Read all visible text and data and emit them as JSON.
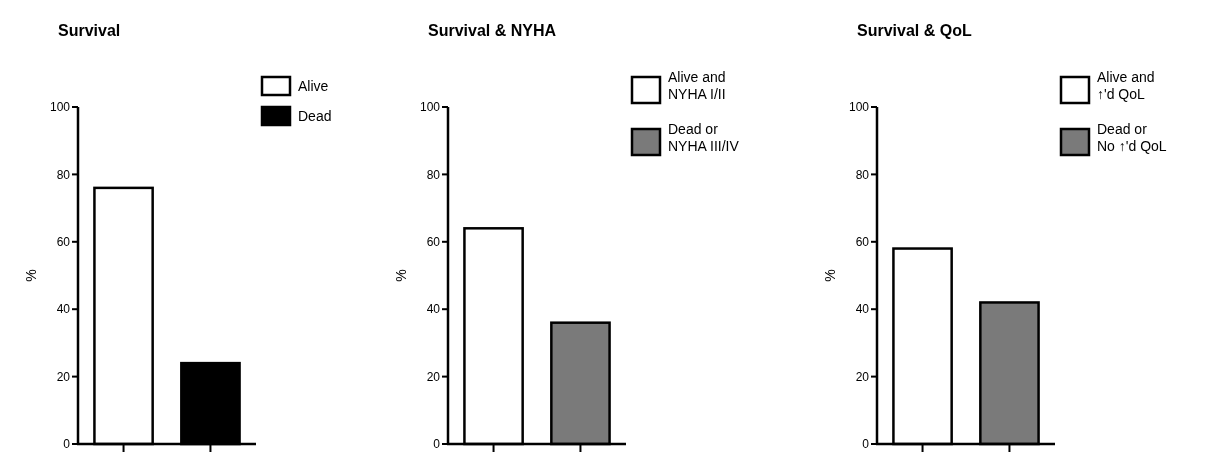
{
  "chart_data": [
    {
      "type": "bar",
      "title": "Survival",
      "ylabel": "%",
      "categories": [
        null,
        null
      ],
      "ylim": [
        0,
        100
      ],
      "yticks": [
        0,
        20,
        40,
        60,
        80,
        100
      ],
      "legend": "top right",
      "series": [
        {
          "name": "Alive",
          "color": "#ffffff",
          "values": [
            76,
            null
          ]
        },
        {
          "name": "Dead",
          "color": "#000000",
          "values": [
            null,
            24
          ]
        }
      ]
    },
    {
      "type": "bar",
      "title": "Survival & NYHA",
      "ylabel": "%",
      "categories": [
        null,
        null
      ],
      "ylim": [
        0,
        100
      ],
      "yticks": [
        0,
        20,
        40,
        60,
        80,
        100
      ],
      "legend": "top right",
      "series": [
        {
          "name": "Alive and NYHA I/II",
          "color": "#ffffff",
          "values": [
            64,
            null
          ]
        },
        {
          "name": "Dead or NYHA III/IV",
          "color": "#7a7a7a",
          "values": [
            null,
            36
          ]
        }
      ]
    },
    {
      "type": "bar",
      "title": "Survival & QoL",
      "ylabel": "%",
      "categories": [
        null,
        null
      ],
      "ylim": [
        0,
        100
      ],
      "yticks": [
        0,
        20,
        40,
        60,
        80,
        100
      ],
      "legend": "top right",
      "series": [
        {
          "name": "Alive and ↑'d QoL",
          "color": "#ffffff",
          "values": [
            58,
            null
          ]
        },
        {
          "name": "Dead or No ↑'d QoL",
          "color": "#7a7a7a",
          "values": [
            null,
            42
          ]
        }
      ]
    }
  ]
}
